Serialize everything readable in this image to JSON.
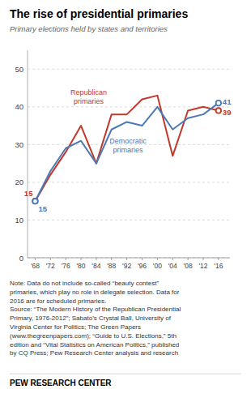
{
  "chart_data": {
    "type": "line",
    "title": "The rise of presidential primaries",
    "subtitle": "Primary elections held by states and territories",
    "x": [
      1968,
      1972,
      1976,
      1980,
      1984,
      1988,
      1992,
      1996,
      2000,
      2004,
      2008,
      2012,
      2016
    ],
    "xlim": [
      1966,
      2019
    ],
    "xticks": [
      {
        "value": 1968,
        "label": "'68"
      },
      {
        "value": 1972,
        "label": "'72"
      },
      {
        "value": 1976,
        "label": "'76"
      },
      {
        "value": 1980,
        "label": "'80"
      },
      {
        "value": 1984,
        "label": "'84"
      },
      {
        "value": 1988,
        "label": "'88"
      },
      {
        "value": 1992,
        "label": "'92"
      },
      {
        "value": 1996,
        "label": "'96"
      },
      {
        "value": 2000,
        "label": "'00"
      },
      {
        "value": 2004,
        "label": "'04"
      },
      {
        "value": 2008,
        "label": "'08"
      },
      {
        "value": 2012,
        "label": "'12"
      },
      {
        "value": 2016,
        "label": "'16"
      }
    ],
    "ylim": [
      0,
      55
    ],
    "yticks": [
      0,
      10,
      20,
      30,
      40,
      50
    ],
    "grid": true,
    "series": [
      {
        "name": "Republican\nprimaries",
        "color": "#c0392b",
        "values": [
          15,
          22,
          28,
          35,
          25,
          38,
          38,
          42,
          43,
          27,
          39,
          40,
          39
        ]
      },
      {
        "name": "Democratic\nprimaries",
        "color": "#4a7ab5",
        "values": [
          15,
          23,
          29,
          31,
          25,
          34,
          36,
          35,
          40,
          34,
          37,
          38,
          41
        ]
      }
    ],
    "note": [
      "Note: Data do not include so-called “beauty contest”",
      "primaries, which play no role in delegate selection. Data for",
      "2016 are for scheduled primaries.",
      "Source: “The Modern History of the Republican Presidential",
      "Primary, 1976-2012”; Sabato’s Crystal Ball, University of",
      "Virginia Center for Politics; The Green Papers",
      "(www.thegreenpapers.com); “Guide to U.S. Elections,” 5th",
      "edition and “Vital Statistics on American Politics,” published",
      "by CQ Press; Pew Research Center analysis and research"
    ],
    "footer": "PEW RESEARCH CENTER"
  }
}
